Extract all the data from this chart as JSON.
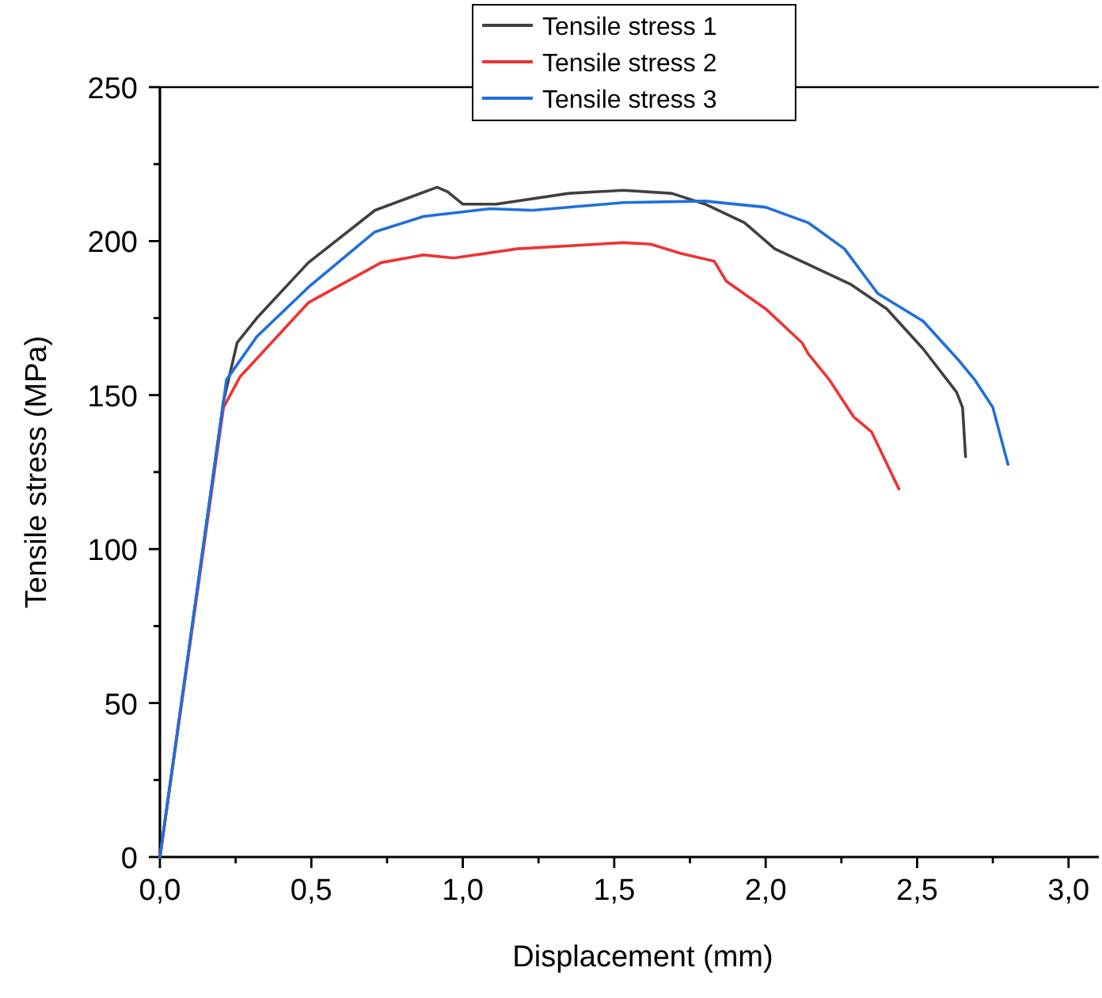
{
  "chart_data": {
    "type": "line",
    "xlabel": "Displacement (mm)",
    "ylabel": "Tensile stress (MPa)",
    "xlim": [
      0,
      3.1
    ],
    "ylim": [
      0,
      250
    ],
    "xticks": [
      {
        "value": 0,
        "label": "0,0"
      },
      {
        "value": 0.25,
        "label": null
      },
      {
        "value": 0.5,
        "label": "0,5"
      },
      {
        "value": 0.75,
        "label": null
      },
      {
        "value": 1,
        "label": "1,0"
      },
      {
        "value": 1.25,
        "label": null
      },
      {
        "value": 1.5,
        "label": "1,5"
      },
      {
        "value": 1.75,
        "label": null
      },
      {
        "value": 2,
        "label": "2,0"
      },
      {
        "value": 2.25,
        "label": null
      },
      {
        "value": 2.5,
        "label": "2,5"
      },
      {
        "value": 2.75,
        "label": null
      },
      {
        "value": 3,
        "label": "3,0"
      }
    ],
    "yticks": [
      0,
      {
        "value": 25,
        "label": null
      },
      50,
      {
        "value": 75,
        "label": null
      },
      100,
      {
        "value": 125,
        "label": null
      },
      150,
      {
        "value": 175,
        "label": null
      },
      200,
      {
        "value": 225,
        "label": null
      },
      250
    ],
    "grid": false,
    "legend": "top",
    "line_style": "solid",
    "marker": "none",
    "series": [
      {
        "name": "Tensile stress 1",
        "color": "#404040",
        "x": [
          0,
          0.21,
          0.255,
          0.32,
          0.49,
          0.71,
          0.915,
          0.95,
          1.0,
          1.11,
          1.35,
          1.53,
          1.69,
          1.8,
          1.93,
          2.03,
          2.28,
          2.4,
          2.52,
          2.63,
          2.65,
          2.66
        ],
        "values": [
          0,
          148,
          167,
          175,
          193,
          210,
          217.5,
          216,
          212,
          212,
          215.5,
          216.5,
          215.5,
          212,
          206,
          197.5,
          186,
          178,
          165,
          151,
          146,
          130
        ]
      },
      {
        "name": "Tensile stress 2",
        "color": "#ee3333",
        "x": [
          0,
          0.21,
          0.265,
          0.49,
          0.73,
          0.87,
          0.97,
          1.18,
          1.53,
          1.62,
          1.72,
          1.83,
          1.87,
          2.0,
          2.12,
          2.14,
          2.21,
          2.29,
          2.35,
          2.44
        ],
        "values": [
          0,
          146,
          156,
          180,
          193,
          195.5,
          194.5,
          197.5,
          199.5,
          199,
          196,
          193.5,
          187,
          178,
          167,
          163.5,
          155,
          143,
          138,
          119.5
        ]
      },
      {
        "name": "Tensile stress 3",
        "color": "#1f6fdc",
        "x": [
          0,
          0.22,
          0.32,
          0.49,
          0.71,
          0.87,
          1.09,
          1.23,
          1.53,
          1.8,
          2.0,
          2.14,
          2.26,
          2.37,
          2.52,
          2.64,
          2.69,
          2.75,
          2.8
        ],
        "values": [
          0,
          155,
          169,
          185,
          203,
          208,
          210.5,
          210,
          212.5,
          213,
          211,
          206,
          197.5,
          183,
          174,
          161,
          155,
          146,
          127.5
        ]
      }
    ]
  }
}
